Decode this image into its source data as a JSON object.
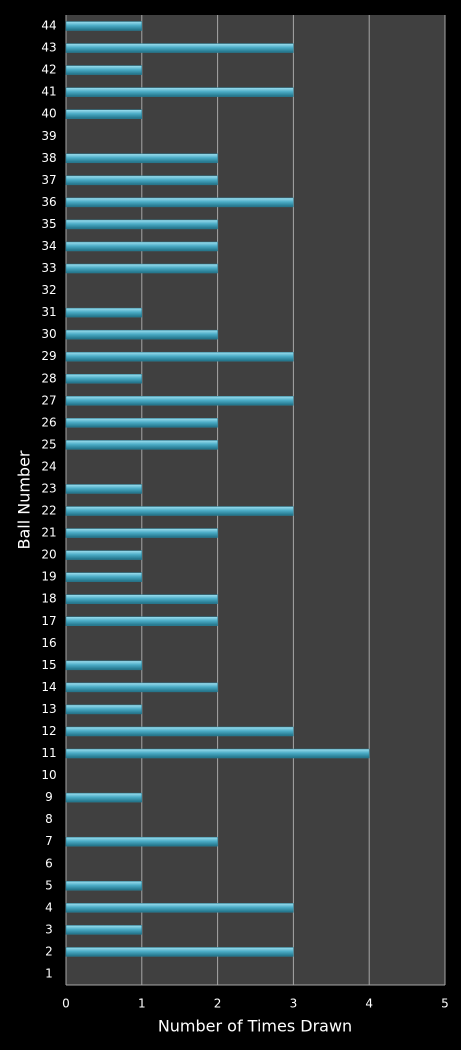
{
  "chart_data": {
    "type": "bar",
    "orientation": "horizontal",
    "x_label": "Number of Times Drawn",
    "y_label": "Ball Number",
    "categories": [
      "1",
      "2",
      "3",
      "4",
      "5",
      "6",
      "7",
      "8",
      "9",
      "10",
      "11",
      "12",
      "13",
      "14",
      "15",
      "16",
      "17",
      "18",
      "19",
      "20",
      "21",
      "22",
      "23",
      "24",
      "25",
      "26",
      "27",
      "28",
      "29",
      "30",
      "31",
      "32",
      "33",
      "34",
      "35",
      "36",
      "37",
      "38",
      "39",
      "40",
      "41",
      "42",
      "43",
      "44"
    ],
    "values": [
      0,
      3,
      1,
      3,
      1,
      0,
      2,
      0,
      1,
      0,
      4,
      3,
      1,
      2,
      1,
      0,
      2,
      2,
      1,
      1,
      2,
      3,
      1,
      0,
      2,
      2,
      3,
      1,
      3,
      2,
      1,
      0,
      2,
      2,
      2,
      3,
      2,
      2,
      0,
      1,
      3,
      1,
      3,
      1
    ],
    "color": "#4bacc6",
    "xlim": [
      0,
      5
    ],
    "xticks": [
      0,
      1,
      2,
      3,
      4,
      5
    ],
    "grid": true
  }
}
